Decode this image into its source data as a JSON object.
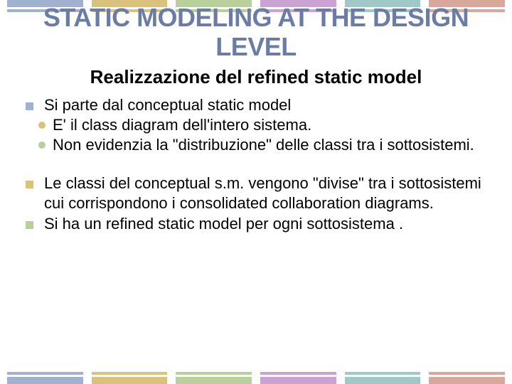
{
  "colors": {
    "title": "#6b7da5",
    "stripe": [
      "#a3b1d1",
      "#d9c27c",
      "#b8d19a",
      "#c9a3d1",
      "#a0c8c8",
      "#d9a89c"
    ]
  },
  "title": "STATIC MODELING AT THE DESIGN LEVEL",
  "subtitle": "Realizzazione del refined static model",
  "items": [
    {
      "text": "Si parte dal conceptual static model",
      "sub": [
        "E' il class diagram dell'intero sistema.",
        "Non evidenzia la \"distribuzione\" delle classi tra i sottosistemi."
      ]
    },
    {
      "text": "Le classi del conceptual s.m. vengono \"divise\" tra i sottosistemi cui corrispondono i consolidated collaboration diagrams."
    },
    {
      "text": "Si ha un refined static model per ogni sottosistema ."
    }
  ]
}
